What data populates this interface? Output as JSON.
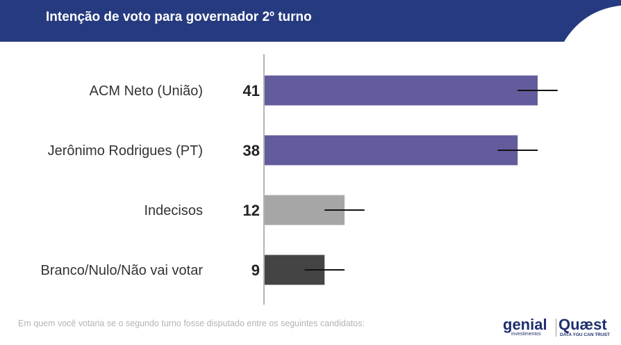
{
  "header": {
    "title": "Intenção de voto para governador 2º turno",
    "color": "#263a80"
  },
  "chart_data": {
    "type": "bar",
    "orientation": "horizontal",
    "categories": [
      "ACM Neto (União)",
      "Jerônimo Rodrigues (PT)",
      "Indecisos",
      "Branco/Nulo/Não vai votar"
    ],
    "values": [
      41,
      38,
      12,
      9
    ],
    "data_labels": [
      "41",
      "38",
      "12",
      "9"
    ],
    "error_margin": 3,
    "colors": [
      "#625b9c",
      "#625b9c",
      "#a6a6a6",
      "#444444"
    ],
    "xlim": [
      0,
      45
    ],
    "grid": false
  },
  "footer": {
    "note": "Em quem você votaria se o segundo turno fosse disputado entre os seguintes candidatos:",
    "logo_genial": "genial",
    "logo_genial_sub": "investimentos",
    "logo_quaest": "Quæst",
    "logo_quaest_sub": "DATA YOU CAN TRUST"
  }
}
